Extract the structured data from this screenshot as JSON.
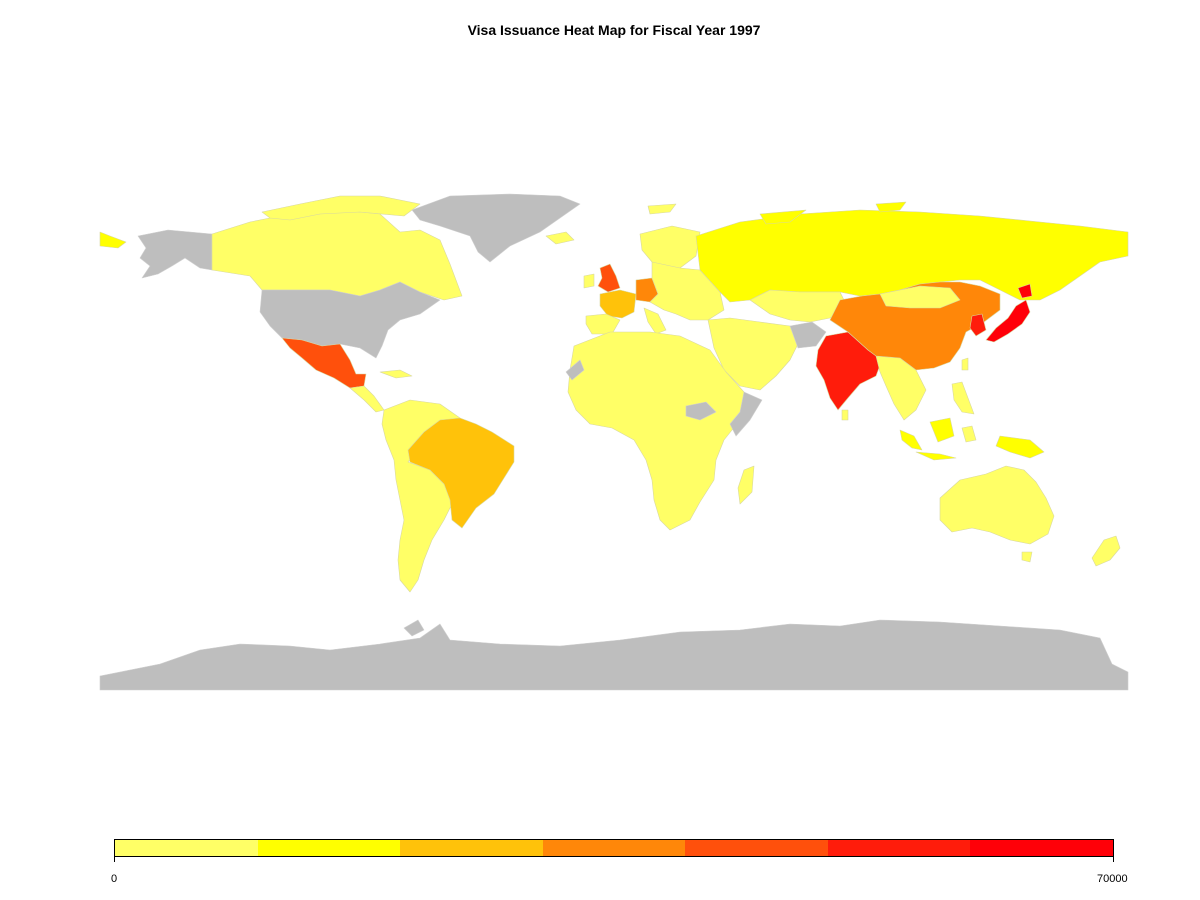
{
  "title": "Visa Issuance Heat Map for Fiscal Year 1997",
  "chart_data": {
    "type": "heatmap",
    "subtype": "choropleth-world-map",
    "title": "Visa Issuance Heat Map for Fiscal Year 1997",
    "scale": {
      "min": 0,
      "max": 70000,
      "min_label": "0",
      "max_label": "70000",
      "bins": 7,
      "colors": [
        "#ffff66",
        "#ffff00",
        "#ffc20a",
        "#ff8709",
        "#ff500c",
        "#ff1c0b",
        "#ff0008"
      ]
    },
    "no_data_color": "#bebebe",
    "regions": [
      {
        "region": "United States",
        "bin": "none"
      },
      {
        "region": "Canada",
        "bin": 0
      },
      {
        "region": "Greenland",
        "bin": "none"
      },
      {
        "region": "Alaska",
        "bin": "none"
      },
      {
        "region": "Mexico",
        "bin": 4
      },
      {
        "region": "Brazil",
        "bin": 2
      },
      {
        "region": "South America (other)",
        "bin": 0
      },
      {
        "region": "United Kingdom",
        "bin": 4
      },
      {
        "region": "France",
        "bin": 2
      },
      {
        "region": "Germany",
        "bin": 3
      },
      {
        "region": "Europe (other)",
        "bin": 0
      },
      {
        "region": "Russia",
        "bin": 1
      },
      {
        "region": "China",
        "bin": 3
      },
      {
        "region": "India",
        "bin": 5
      },
      {
        "region": "Japan",
        "bin": 6
      },
      {
        "region": "Korea",
        "bin": 5
      },
      {
        "region": "Indonesia",
        "bin": 1
      },
      {
        "region": "Africa",
        "bin": 0
      },
      {
        "region": "Australia",
        "bin": 0
      },
      {
        "region": "New Zealand",
        "bin": 0
      },
      {
        "region": "Afghanistan",
        "bin": "none"
      },
      {
        "region": "Antarctica",
        "bin": "none"
      }
    ]
  }
}
